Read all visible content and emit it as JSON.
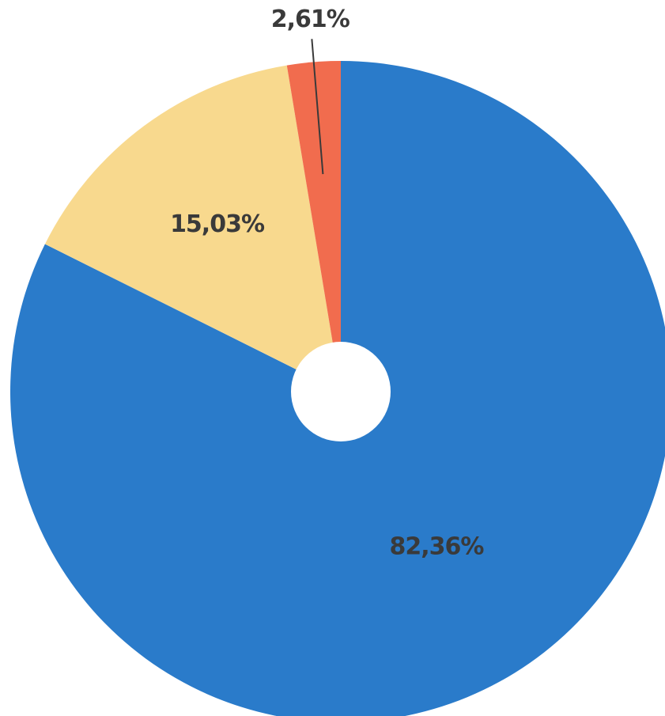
{
  "chart_data": {
    "type": "pie",
    "donut": true,
    "categories": [
      "",
      "",
      ""
    ],
    "values": [
      82.36,
      15.03,
      2.61
    ],
    "labels": [
      "82,36%",
      "15,03%",
      "2,61%"
    ],
    "colors": [
      "#2a7bca",
      "#f8d98e",
      "#f16c4e"
    ],
    "title": "",
    "legend": "none"
  }
}
